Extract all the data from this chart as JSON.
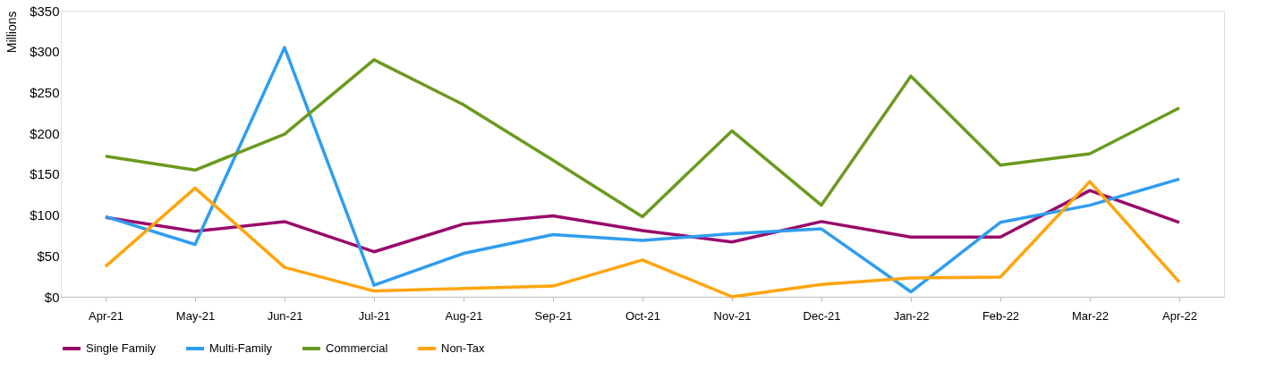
{
  "chart_data": {
    "type": "line",
    "ylabel": "Millions",
    "categories": [
      "Apr-21",
      "May-21",
      "Jun-21",
      "Jul-21",
      "Aug-21",
      "Sep-21",
      "Oct-21",
      "Nov-21",
      "Dec-21",
      "Jan-22",
      "Feb-22",
      "Mar-22",
      "Apr-22"
    ],
    "series": [
      {
        "name": "Single Family",
        "color": "#990a6b",
        "values": [
          97,
          80,
          92,
          55,
          89,
          99,
          81,
          67,
          92,
          73,
          73,
          130,
          91
        ]
      },
      {
        "name": "Multi-Family",
        "color": "#2f9df0",
        "values": [
          98,
          64,
          305,
          14,
          53,
          76,
          69,
          77,
          83,
          6,
          91,
          112,
          144
        ]
      },
      {
        "name": "Commercial",
        "color": "#6b9a1e",
        "values": [
          172,
          155,
          199,
          290,
          235,
          167,
          98,
          203,
          112,
          270,
          161,
          175,
          231
        ]
      },
      {
        "name": "Non-Tax",
        "color": "#ffa40b",
        "values": [
          37,
          133,
          36,
          7,
          10,
          13,
          45,
          0,
          15,
          23,
          24,
          141,
          18
        ]
      }
    ],
    "ylim": [
      0,
      350
    ],
    "yticks": [
      {
        "value": 0,
        "label": "$0"
      },
      {
        "value": 50,
        "label": "$50"
      },
      {
        "value": 100,
        "label": "$100"
      },
      {
        "value": 150,
        "label": "$150"
      },
      {
        "value": 200,
        "label": "$200"
      },
      {
        "value": 250,
        "label": "$250"
      },
      {
        "value": 300,
        "label": "$300"
      },
      {
        "value": 350,
        "label": "$350"
      }
    ],
    "grid": false,
    "legend": "bottom",
    "marker": "none",
    "line_style": "solid"
  }
}
